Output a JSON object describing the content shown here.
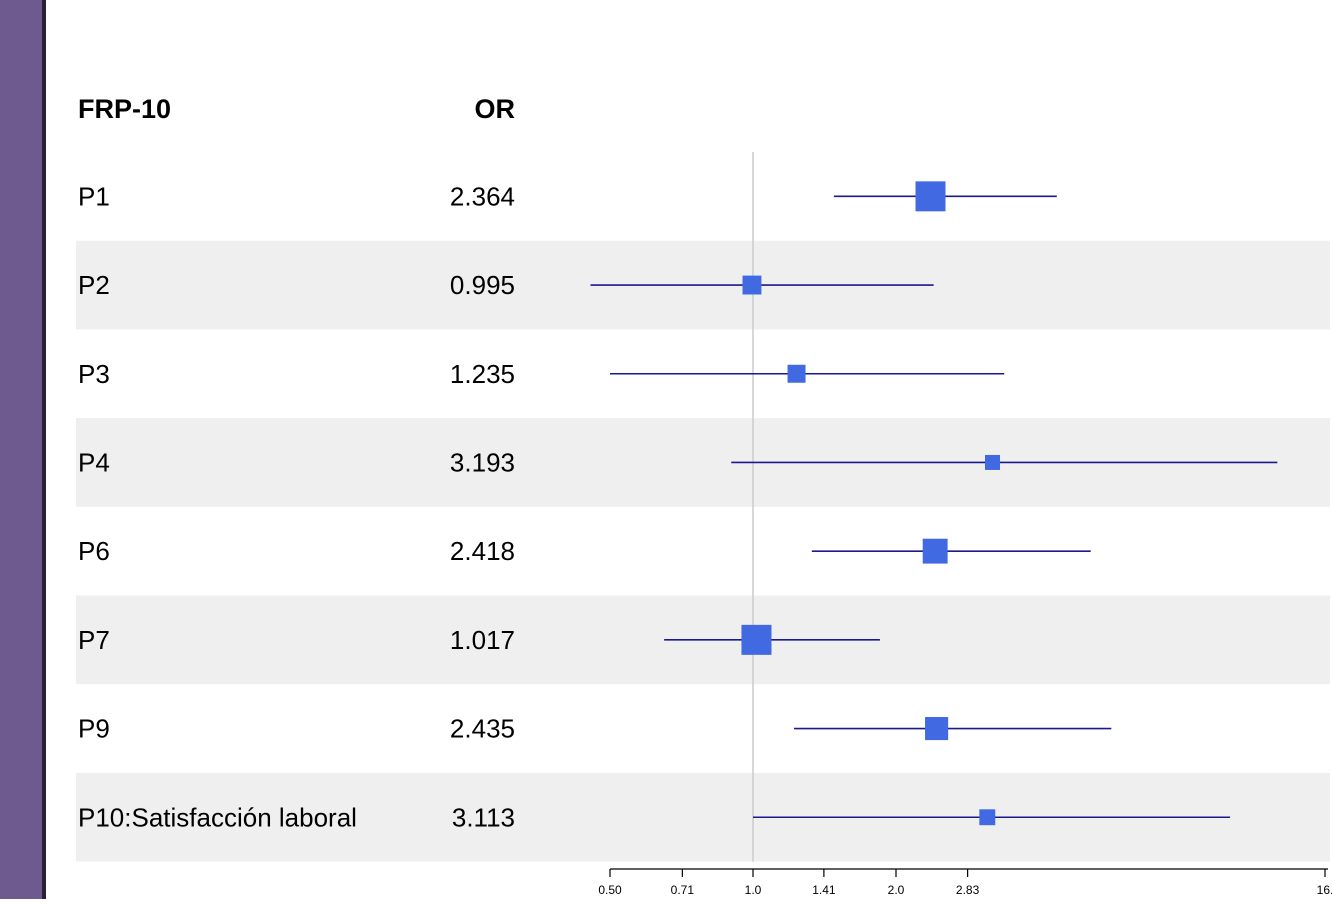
{
  "headers": {
    "label": "FRP-10",
    "value": "OR"
  },
  "colors": {
    "sidebar": "#6e5a8e",
    "sidebar_edge": "#2a1f3a",
    "stripe": "#efefef",
    "ci_line": "#1a1a8c",
    "marker": "#4169e1",
    "reference_line": "#cccccc"
  },
  "chart_data": {
    "type": "forest",
    "xscale": "log2",
    "reference_value": 1.0,
    "xlim": [
      0.5,
      16
    ],
    "xticks": [
      "0.50",
      "0.71",
      "1.0",
      "1.41",
      "2.0",
      "2.83",
      "16."
    ],
    "rows": [
      {
        "label": "P1",
        "or": "2.364",
        "estimate": 2.364,
        "lower": 1.48,
        "upper": 4.36,
        "weight": 1.0,
        "shaded": false
      },
      {
        "label": "P2",
        "or": "0.995",
        "estimate": 0.995,
        "lower": 0.455,
        "upper": 2.4,
        "weight": 0.63,
        "shaded": true
      },
      {
        "label": "P3",
        "or": "1.235",
        "estimate": 1.235,
        "lower": 0.5,
        "upper": 3.38,
        "weight": 0.6,
        "shaded": false
      },
      {
        "label": "P4",
        "or": "3.193",
        "estimate": 3.193,
        "lower": 0.9,
        "upper": 12.7,
        "weight": 0.5,
        "shaded": true
      },
      {
        "label": "P6",
        "or": "2.418",
        "estimate": 2.418,
        "lower": 1.33,
        "upper": 5.14,
        "weight": 0.83,
        "shaded": false
      },
      {
        "label": "P7",
        "or": "1.017",
        "estimate": 1.017,
        "lower": 0.65,
        "upper": 1.85,
        "weight": 1.0,
        "shaded": true
      },
      {
        "label": "P9",
        "or": "2.435",
        "estimate": 2.435,
        "lower": 1.22,
        "upper": 5.68,
        "weight": 0.77,
        "shaded": false
      },
      {
        "label": "P10:Satisfacción laboral",
        "or": "3.113",
        "estimate": 3.113,
        "lower": 1.0,
        "upper": 10.1,
        "weight": 0.53,
        "shaded": true
      }
    ]
  }
}
